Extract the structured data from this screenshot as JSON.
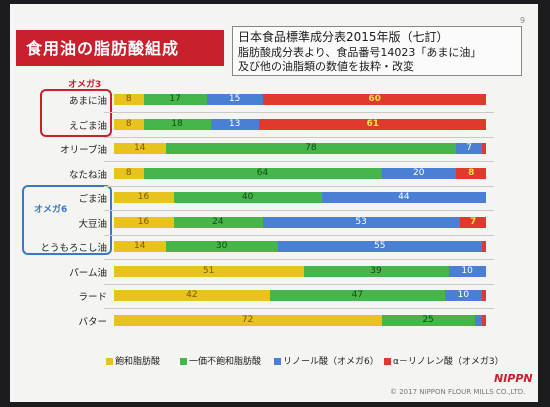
{
  "page_number": "9",
  "title": "食用油の脂肪酸組成",
  "note_lines": [
    "日本食品標準成分表2015年版（七訂）",
    "脂肪酸成分表より、食品番号14023「あまに油」",
    "及び他の油脂類の数値を抜粋・改変"
  ],
  "groups": [
    {
      "label": "オメガ3",
      "color": "#c8202d"
    },
    {
      "label": "オメガ6",
      "color": "#3a78c2"
    }
  ],
  "colors": {
    "saturated": "#e8c21e",
    "monounsaturated": "#46b54a",
    "linoleic": "#4a7fd4",
    "alpha_linolenic": "#e03a2e",
    "label_saturated": "#7a5a00",
    "label_mono": "#0e4f12",
    "label_linoleic": "#ffffff",
    "label_alpha": "#ffe14a"
  },
  "chart_data": {
    "type": "bar",
    "stacked": true,
    "orientation": "horizontal",
    "unit": "%",
    "categories": [
      "あまに油",
      "えごま油",
      "オリーブ油",
      "なたね油",
      "ごま油",
      "大豆油",
      "とうもろこし油",
      "パーム油",
      "ラード",
      "バター"
    ],
    "series": [
      {
        "name": "飽和脂肪酸",
        "values": [
          8,
          8,
          14,
          8,
          16,
          16,
          14,
          51,
          42,
          72
        ]
      },
      {
        "name": "一価不飽和脂肪酸",
        "values": [
          17,
          18,
          78,
          64,
          40,
          24,
          30,
          39,
          47,
          25
        ]
      },
      {
        "name": "リノール酸（オメガ6）",
        "values": [
          15,
          13,
          7,
          20,
          44,
          53,
          55,
          10,
          10,
          2
        ]
      },
      {
        "name": "α－リノレン酸（オメガ3）",
        "values": [
          60,
          61,
          1,
          8,
          0,
          7,
          1,
          0,
          1,
          1
        ]
      }
    ],
    "legend_position": "bottom",
    "grid": false
  },
  "footer": {
    "copyright": "© 2017 NIPPON FLOUR MILLS CO.,LTD.",
    "logo": "NIPPN"
  }
}
